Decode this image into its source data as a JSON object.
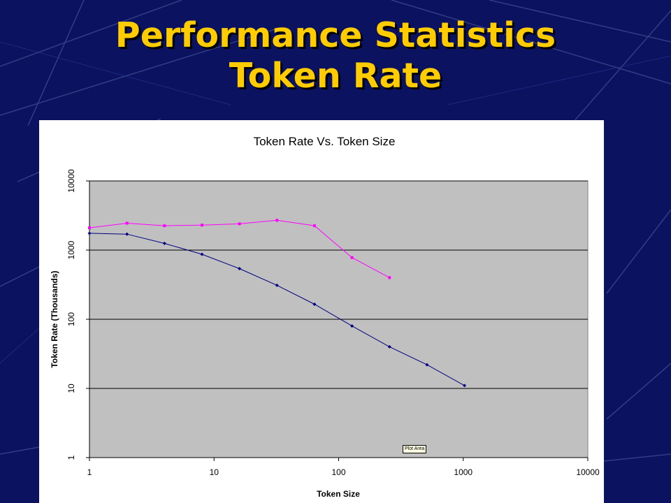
{
  "slide": {
    "title_line1": "Performance Statistics",
    "title_line2": "Token Rate",
    "background_color": "#0b1260",
    "title_color": "#ffcc00"
  },
  "tooltip": "Plot Area",
  "chart_data": {
    "type": "line",
    "title": "Token Rate Vs. Token Size",
    "xlabel": "Token Size",
    "ylabel": "Token Rate (Thousands)",
    "xscale": "log",
    "yscale": "log",
    "xlim": [
      1,
      10000
    ],
    "ylim": [
      1,
      10000
    ],
    "xticks": [
      "1",
      "10",
      "100",
      "1000",
      "10000"
    ],
    "yticks": [
      "1",
      "10",
      "100",
      "1000",
      "10000"
    ],
    "grid": true,
    "plot_background": "#c0c0c0",
    "series": [
      {
        "color": "#000080",
        "marker": "diamond",
        "x": [
          1,
          2,
          4,
          8,
          16,
          32,
          64,
          128,
          256,
          512,
          1024
        ],
        "y": [
          1750,
          1700,
          1250,
          870,
          540,
          310,
          165,
          80,
          40,
          22,
          11
        ]
      },
      {
        "color": "#ff00ff",
        "marker": "square",
        "x": [
          1,
          2,
          4,
          8,
          16,
          32,
          64,
          128,
          256
        ],
        "y": [
          2100,
          2450,
          2250,
          2300,
          2400,
          2700,
          2250,
          780,
          400
        ]
      }
    ]
  }
}
